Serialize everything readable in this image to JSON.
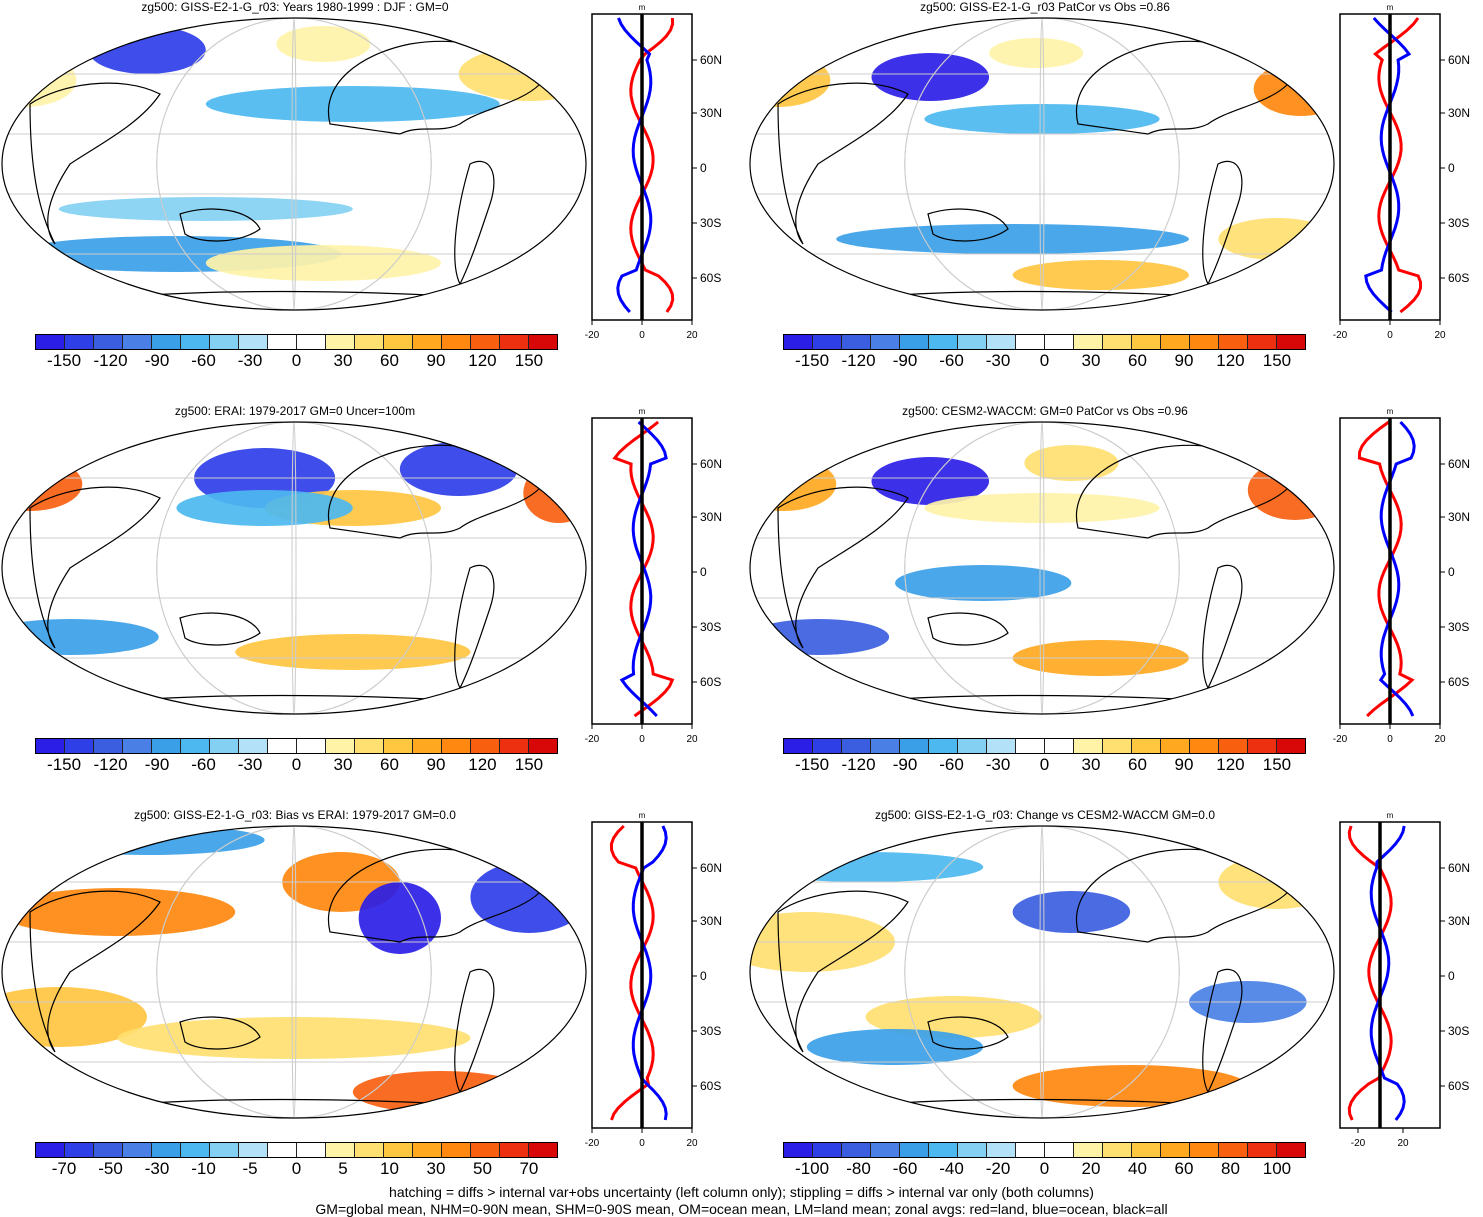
{
  "panels": [
    {
      "id": "p1",
      "title": "zg500: GISS-E2-1-G_r03: Years 1980-1999 : DJF : GM=0",
      "colorbar": "cb_pm150"
    },
    {
      "id": "p2",
      "title": "zg500: GISS-E2-1-G_r03 PatCor vs Obs =0.86",
      "colorbar": "cb_pm150"
    },
    {
      "id": "p3",
      "title": "zg500: ERAI: 1979-2017 GM=0 Uncer=100m",
      "colorbar": "cb_pm150"
    },
    {
      "id": "p4",
      "title": "zg500: CESM2-WACCM: GM=0 PatCor vs Obs =0.96",
      "colorbar": "cb_pm150"
    },
    {
      "id": "p5",
      "title": "zg500: GISS-E2-1-G_r03: Bias vs ERAI: 1979-2017 GM=0.0",
      "colorbar": "cb_pm70"
    },
    {
      "id": "p6",
      "title": "zg500: GISS-E2-1-G_r03: Change vs CESM2-WACCM GM=0.0",
      "colorbar": "cb_pm100"
    }
  ],
  "colorbars": {
    "cb_pm150": {
      "labels": [
        "-150",
        "-120",
        "-90",
        "-60",
        "-30",
        "0",
        "30",
        "60",
        "90",
        "120",
        "150"
      ]
    },
    "cb_pm70": {
      "labels": [
        "-70",
        "-50",
        "-30",
        "-10",
        "-5",
        "0",
        "5",
        "10",
        "30",
        "50",
        "70"
      ]
    },
    "cb_pm100": {
      "labels": [
        "-100",
        "-80",
        "-60",
        "-40",
        "-20",
        "0",
        "20",
        "40",
        "60",
        "80",
        "100"
      ]
    }
  },
  "colors": {
    "colorbar_scale": [
      "#2b1ee6",
      "#2f3fe8",
      "#3b5ee0",
      "#4a80e6",
      "#3b9fe8",
      "#4db8f0",
      "#84d0f2",
      "#b3e1f7",
      "#ffffff",
      "#ffffff",
      "#fff3a8",
      "#ffe070",
      "#ffc640",
      "#ffa820",
      "#ff8810",
      "#f86010",
      "#ec3010",
      "#d80808"
    ],
    "land_line": "#000000",
    "zonal_land": "#ff0000",
    "zonal_ocean": "#0000ff",
    "zonal_all": "#000000"
  },
  "zonal_axis": {
    "unit": "m",
    "lat_labels": [
      "60N",
      "30N",
      "0",
      "30S",
      "60S"
    ],
    "x_ticks_a": [
      "-20",
      "0",
      "20"
    ],
    "x_ticks_b": [
      "-20",
      "20"
    ]
  },
  "chart_data": [
    {
      "type": "heatmap",
      "panel": "p1",
      "title": "zg500: GISS-E2-1-G_r03: Years 1980-1999 : DJF : GM=0",
      "projection": "Robinson",
      "colorbar_range": [
        -150,
        150
      ]
    },
    {
      "type": "heatmap",
      "panel": "p2",
      "title": "zg500: GISS-E2-1-G_r03 PatCor vs Obs =0.86",
      "projection": "Robinson",
      "colorbar_range": [
        -150,
        150
      ]
    },
    {
      "type": "heatmap",
      "panel": "p3",
      "title": "zg500: ERAI: 1979-2017 GM=0 Uncer=100m",
      "projection": "Robinson",
      "colorbar_range": [
        -150,
        150
      ]
    },
    {
      "type": "heatmap",
      "panel": "p4",
      "title": "zg500: CESM2-WACCM: GM=0 PatCor vs Obs =0.96",
      "projection": "Robinson",
      "colorbar_range": [
        -150,
        150
      ]
    },
    {
      "type": "heatmap",
      "panel": "p5",
      "title": "zg500: GISS-E2-1-G_r03: Bias vs ERAI: 1979-2017 GM=0.0",
      "projection": "Robinson",
      "colorbar_range": [
        -70,
        70
      ]
    },
    {
      "type": "heatmap",
      "panel": "p6",
      "title": "zg500: GISS-E2-1-G_r03: Change vs CESM2-WACCM GM=0.0",
      "projection": "Robinson",
      "colorbar_range": [
        -100,
        100
      ]
    }
  ],
  "footer": {
    "line1": "hatching = diffs > internal var+obs uncertainty (left column only); stippling = diffs > internal var only (both columns)",
    "line2": "GM=global mean, NHM=0-90N mean, SHM=0-90S mean, OM=ocean mean, LM=land mean; zonal avgs: red=land, blue=ocean, black=all"
  }
}
